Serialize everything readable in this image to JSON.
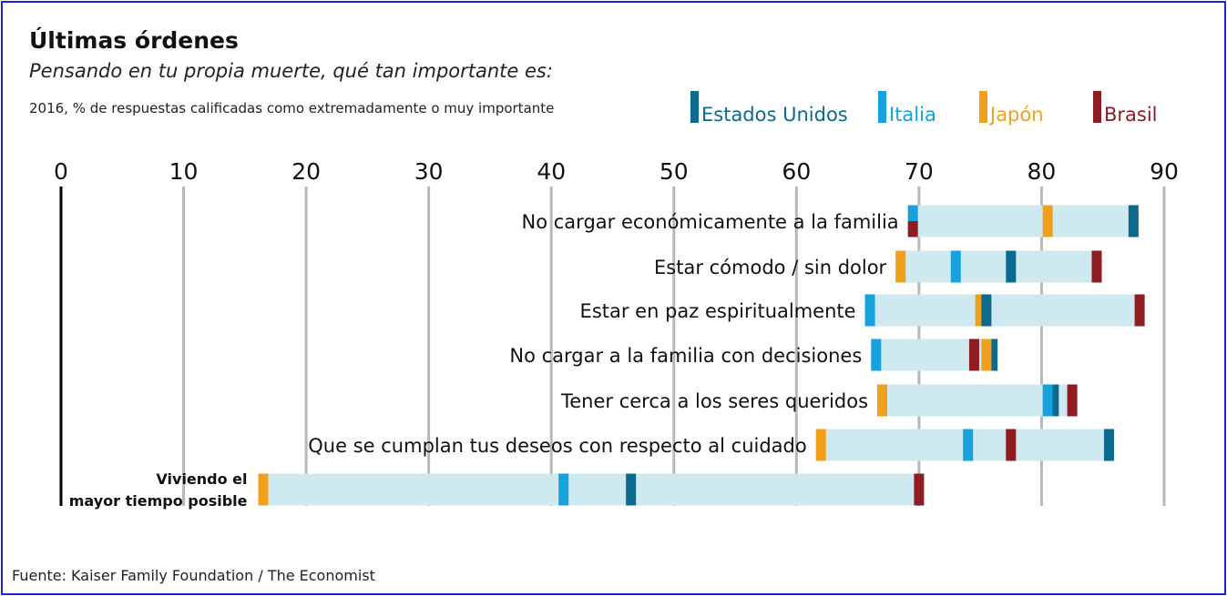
{
  "title": "Últimas órdenes",
  "subtitle": "Pensando en tu propia muerte, qué tan importante es:",
  "note": "2016,  % de respuestas calificadas como extremadamente o muy importante",
  "source": "Fuente: Kaiser Family Foundation /  The Economist",
  "colors": {
    "background_bar": "#cfe9f0",
    "Estados Unidos": "#0b6a8e",
    "Italia": "#17a2dd",
    "Japón": "#f0a01a",
    "Brasil": "#8e1c22",
    "axis_line": "#000000",
    "grid": "#b8b8b8"
  },
  "chart_data": {
    "type": "dot-range",
    "title": "Últimas órdenes",
    "subtitle": "Pensando en tu propia muerte, qué tan importante es:",
    "xlim": [
      0,
      90
    ],
    "x_ticks": [
      "0",
      "10",
      "20",
      "30",
      "40",
      "50",
      "60",
      "70",
      "80",
      "90"
    ],
    "x_tick_values": [
      0,
      10,
      20,
      30,
      40,
      50,
      60,
      70,
      80,
      90
    ],
    "grid": true,
    "legend_position": "top-right",
    "series": [
      {
        "name": "Estados Unidos"
      },
      {
        "name": "Italia"
      },
      {
        "name": "Japón"
      },
      {
        "name": "Brasil"
      }
    ],
    "categories": [
      {
        "label": "No cargar económicamente a la familia",
        "values": {
          "Estados Unidos": 87.5,
          "Italia": 69.5,
          "Japón": 80.5,
          "Brasil": 69.5
        }
      },
      {
        "label": "Estar cómodo / sin dolor",
        "values": {
          "Estados Unidos": 77.5,
          "Italia": 73.0,
          "Japón": 68.5,
          "Brasil": 84.5
        }
      },
      {
        "label": "Estar en paz espiritualmente",
        "values": {
          "Estados Unidos": 75.5,
          "Italia": 66.0,
          "Japón": 75.0,
          "Brasil": 88.0
        }
      },
      {
        "label": "No cargar a la familia con decisiones",
        "values": {
          "Estados Unidos": 76.0,
          "Italia": 66.5,
          "Japón": 75.5,
          "Brasil": 74.5
        }
      },
      {
        "label": "Tener cerca a los seres queridos",
        "values": {
          "Estados Unidos": 81.0,
          "Italia": 80.5,
          "Japón": 67.0,
          "Brasil": 82.5
        }
      },
      {
        "label": "Que se cumplan tus deseos con respecto al cuidado",
        "values": {
          "Estados Unidos": 85.5,
          "Italia": 74.0,
          "Japón": 62.0,
          "Brasil": 77.5
        }
      },
      {
        "label": "Viviendo el mayor tiempo posible",
        "label_lines": [
          "Viviendo el",
          "mayor tiempo posible"
        ],
        "values": {
          "Estados Unidos": 46.5,
          "Italia": 41.0,
          "Japón": 16.5,
          "Brasil": 70.0
        }
      }
    ]
  }
}
